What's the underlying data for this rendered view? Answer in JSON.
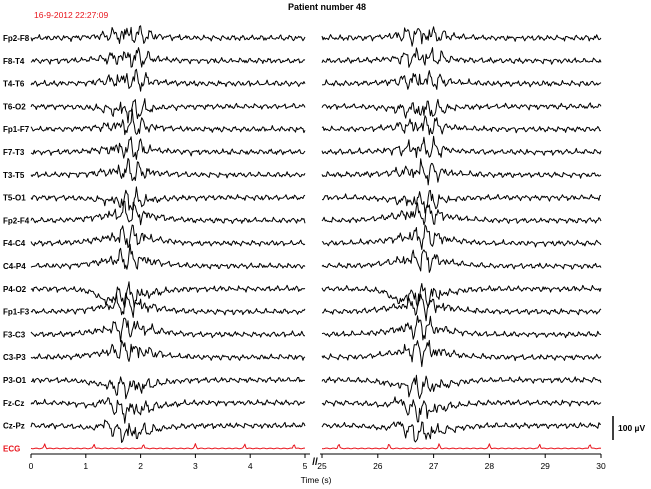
{
  "title": "Patient number 48",
  "timestamp": "16-9-2012 22:27:09",
  "colors": {
    "trace": "#000000",
    "ecg": "#e8141c",
    "timestamp": "#e8141c",
    "axis": "#000000"
  },
  "scale_bar_label": "100 µV",
  "chart_data": {
    "type": "line",
    "title": "Patient number 48",
    "xlabel": "Time (s)",
    "ylabel": "",
    "grid": false,
    "axis_break": "//",
    "panels": [
      {
        "xlim": [
          0,
          5
        ],
        "ticks": [
          "0",
          "1",
          "2",
          "3",
          "4",
          "5"
        ]
      },
      {
        "xlim": [
          25,
          30
        ],
        "ticks": [
          "25",
          "26",
          "27",
          "28",
          "29",
          "30"
        ]
      }
    ],
    "channels": [
      "Fp2-F8",
      "F8-T4",
      "T4-T6",
      "T6-O2",
      "Fp1-F7",
      "F7-T3",
      "T3-T5",
      "T5-O1",
      "Fp2-F4",
      "F4-C4",
      "C4-P4",
      "P4-O2",
      "Fp1-F3",
      "F3-C3",
      "C3-P3",
      "P3-O1",
      "Fz-Cz",
      "Cz-Pz",
      "ECG"
    ],
    "event_centers_s": [
      1.8,
      26.8
    ],
    "ecg_beat_times_s": [
      0.25,
      1.15,
      2.05,
      3.0,
      3.9,
      4.8,
      25.3,
      26.2,
      27.1,
      28.0,
      28.9,
      29.8
    ],
    "amplitude_scale_uV": 100
  }
}
